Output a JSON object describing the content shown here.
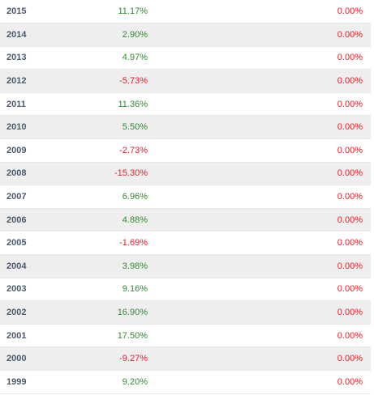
{
  "colors": {
    "positive": "#2e8b2e",
    "negative": "#e0202a",
    "year_text": "#4a5a6e",
    "alt_row": "#eeeeee"
  },
  "rows": [
    {
      "year": "2015",
      "return": "11.17%",
      "other": "0.00%"
    },
    {
      "year": "2014",
      "return": "2.90%",
      "other": "0.00%"
    },
    {
      "year": "2013",
      "return": "4.97%",
      "other": "0.00%"
    },
    {
      "year": "2012",
      "return": "-5.73%",
      "other": "0.00%"
    },
    {
      "year": "2011",
      "return": "11.36%",
      "other": "0.00%"
    },
    {
      "year": "2010",
      "return": "5.50%",
      "other": "0.00%"
    },
    {
      "year": "2009",
      "return": "-2.73%",
      "other": "0.00%"
    },
    {
      "year": "2008",
      "return": "-15.30%",
      "other": "0.00%"
    },
    {
      "year": "2007",
      "return": "6.96%",
      "other": "0.00%"
    },
    {
      "year": "2006",
      "return": "4.88%",
      "other": "0.00%"
    },
    {
      "year": "2005",
      "return": "-1.69%",
      "other": "0.00%"
    },
    {
      "year": "2004",
      "return": "3.98%",
      "other": "0.00%"
    },
    {
      "year": "2003",
      "return": "9.16%",
      "other": "0.00%"
    },
    {
      "year": "2002",
      "return": "16.90%",
      "other": "0.00%"
    },
    {
      "year": "2001",
      "return": "17.50%",
      "other": "0.00%"
    },
    {
      "year": "2000",
      "return": "-9.27%",
      "other": "0.00%"
    },
    {
      "year": "1999",
      "return": "9.20%",
      "other": "0.00%"
    }
  ]
}
